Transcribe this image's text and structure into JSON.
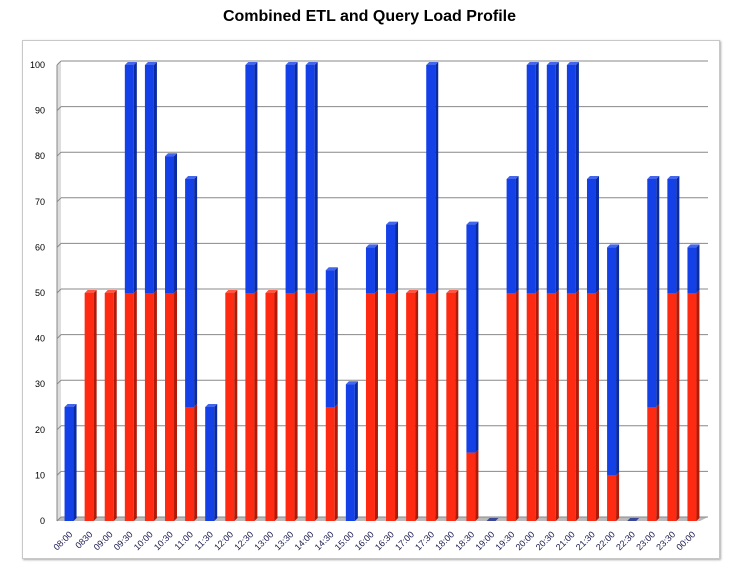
{
  "chart_data": {
    "type": "bar",
    "stacked": true,
    "title": "Combined ETL and Query Load Profile",
    "xlabel": "",
    "ylabel": "",
    "ylim": [
      0,
      100
    ],
    "yticks": [
      0,
      10,
      20,
      30,
      40,
      50,
      60,
      70,
      80,
      90,
      100
    ],
    "grid": true,
    "categories": [
      "08:00",
      "0830",
      "09:00",
      "09:30",
      "10:00",
      "10:30",
      "11:00",
      "11:30",
      "12:00",
      "12:30",
      "13:00",
      "13:30",
      "14:00",
      "14:30",
      "15:00",
      "16:00",
      "16:30",
      "17:00",
      "17:30",
      "18:00",
      "18:30",
      "19:00",
      "19:30",
      "20:00",
      "20:30",
      "21:00",
      "21:30",
      "22:00",
      "22:30",
      "23:00",
      "23:30",
      "00:00"
    ],
    "series": [
      {
        "name": "red",
        "color": "#ff2a12",
        "values": [
          0,
          50,
          50,
          50,
          50,
          50,
          25,
          0,
          50,
          50,
          50,
          50,
          50,
          25,
          0,
          50,
          50,
          50,
          50,
          50,
          15,
          0,
          50,
          50,
          50,
          50,
          50,
          10,
          0,
          25,
          50,
          50
        ]
      },
      {
        "name": "blue",
        "color": "#1440e8",
        "values": [
          25,
          0,
          0,
          50,
          50,
          30,
          50,
          25,
          0,
          50,
          0,
          50,
          50,
          30,
          30,
          10,
          15,
          0,
          50,
          0,
          50,
          0,
          25,
          50,
          50,
          50,
          25,
          50,
          0,
          50,
          25,
          10
        ]
      }
    ]
  }
}
